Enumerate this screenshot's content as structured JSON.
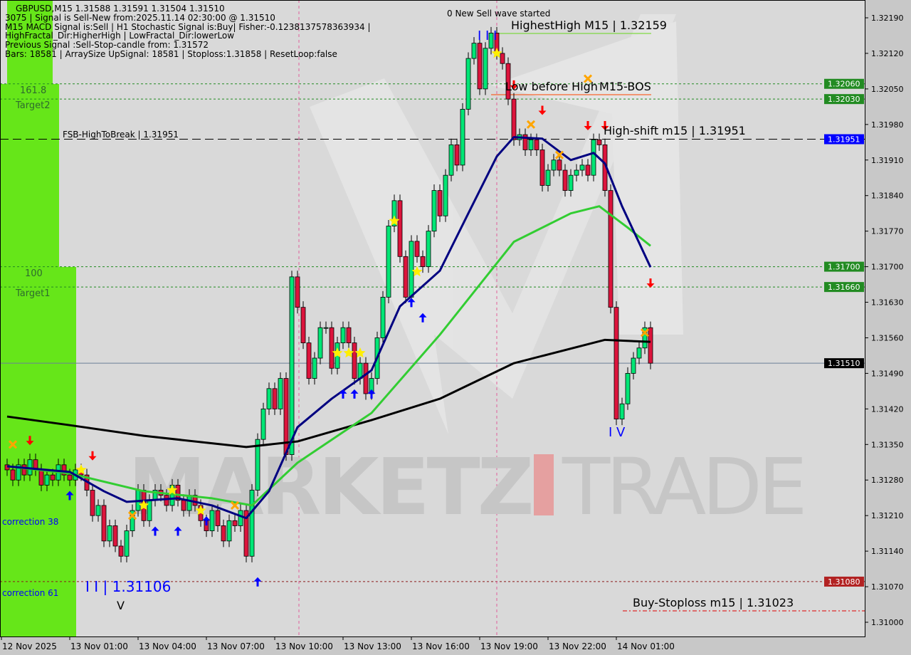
{
  "header": {
    "symbol_line": "GBPUSD,M15  1.31588 1.31591 1.31504 1.31510",
    "lines": [
      "3075 | Signal is Sell-New from:2025.11.14 02:30:00 @ 1.31510",
      "M15 MACD Signal is:Sell | H1 Stochastic Signal is:Buy| Fisher:-0.1238137578363934 | HighFractal_Dir:HigherHigh | LowFractal_Dir:lowerLow",
      "Previous Signal :Sell-Stop-candle from: 1.31572",
      "Bars: 18581 | ArraySize UpSignal: 18581 | Stoploss:1.31858 | ResetLoop:false"
    ]
  },
  "watermark": {
    "left": "MARKETZ",
    "right": "TRADE"
  },
  "colors": {
    "bull": "#00e676",
    "bear": "#dc143c",
    "ma_slow": "#000000",
    "ma_mid": "#32cd32",
    "ma_fast": "#000080",
    "zone": "#66e619",
    "level_green": "#228b22",
    "bid_tag": "#000000",
    "fsb_tag": "#0000ff",
    "stop_tag": "#b22222"
  },
  "zones": [
    {
      "label": "161.8",
      "sub": "Target2"
    },
    {
      "label": "100",
      "sub": "Target1"
    },
    {
      "label": "correction 38"
    },
    {
      "label": "correction 61"
    }
  ],
  "annotations": {
    "new_wave": "0 New Sell wave started",
    "highest_high": "HighestHigh    M15 | 1.32159",
    "low_before_high": "Low before High",
    "bos": "M15-BOS",
    "high_shift": "High-shift m15 | 1.31951",
    "fsb": "FSB-HighToBreak | 1.31951",
    "buy_stoploss": "Buy-Stoploss m15 | 1.31023",
    "wave3": "I I I",
    "wave4": "I V",
    "wave_low": "I I | 1.31106",
    "v_mark": "V"
  },
  "chart_data": {
    "type": "candlestick",
    "title": "GBPUSD,M15",
    "ylim": [
      1.3099,
      1.32225
    ],
    "y_ticks": [
      "1.32190",
      "1.32120",
      "1.32050",
      "1.31980",
      "1.31910",
      "1.31840",
      "1.31770",
      "1.31700",
      "1.31630",
      "1.31560",
      "1.31490",
      "1.31420",
      "1.31350",
      "1.31280",
      "1.31210",
      "1.31140",
      "1.31070",
      "1.31000"
    ],
    "x_ticks": [
      "12 Nov 2025",
      "13 Nov 01:00",
      "13 Nov 04:00",
      "13 Nov 07:00",
      "13 Nov 10:00",
      "13 Nov 13:00",
      "13 Nov 16:00",
      "13 Nov 19:00",
      "13 Nov 22:00",
      "14 Nov 01:00"
    ],
    "price_tags": [
      {
        "value": "1.32060",
        "kind": "green"
      },
      {
        "value": "1.32030",
        "kind": "green"
      },
      {
        "value": "1.31951",
        "kind": "fsb"
      },
      {
        "value": "1.31700",
        "kind": "green"
      },
      {
        "value": "1.31660",
        "kind": "green"
      },
      {
        "value": "1.31510",
        "kind": "bid"
      },
      {
        "value": "1.31080",
        "kind": "stop"
      }
    ],
    "close": [
      1.313,
      1.3128,
      1.3131,
      1.3129,
      1.3132,
      1.313,
      1.3127,
      1.3129,
      1.3128,
      1.3131,
      1.3129,
      1.3128,
      1.313,
      1.3129,
      1.3126,
      1.3121,
      1.3123,
      1.3116,
      1.3119,
      1.3115,
      1.3113,
      1.3118,
      1.3122,
      1.3126,
      1.312,
      1.3124,
      1.3126,
      1.3125,
      1.3123,
      1.3127,
      1.3124,
      1.3122,
      1.3125,
      1.3123,
      1.312,
      1.3118,
      1.3122,
      1.3119,
      1.3116,
      1.312,
      1.3119,
      1.3122,
      1.3113,
      1.3126,
      1.3136,
      1.3142,
      1.3146,
      1.3142,
      1.3148,
      1.3133,
      1.3168,
      1.3162,
      1.3155,
      1.3148,
      1.3152,
      1.3158,
      1.3158,
      1.315,
      1.3155,
      1.3158,
      1.3155,
      1.3148,
      1.3151,
      1.3145,
      1.3148,
      1.3156,
      1.3164,
      1.3178,
      1.3183,
      1.3172,
      1.3164,
      1.3175,
      1.3172,
      1.317,
      1.3177,
      1.3185,
      1.318,
      1.3188,
      1.3194,
      1.319,
      1.3201,
      1.3211,
      1.3214,
      1.3205,
      1.3213,
      1.3216,
      1.3212,
      1.321,
      1.3203,
      1.3195,
      1.3196,
      1.3193,
      1.3195,
      1.3193,
      1.3186,
      1.3189,
      1.3191,
      1.3189,
      1.3185,
      1.3188,
      1.3189,
      1.319,
      1.3188,
      1.3195,
      1.3194,
      1.3185,
      1.3162,
      1.314,
      1.3143,
      1.3149,
      1.3152,
      1.3154,
      1.3158,
      1.3151
    ],
    "series": [
      {
        "key": "ma_slow",
        "points": [
          [
            0,
            1.31405
          ],
          [
            11,
            1.31388
          ],
          [
            24,
            1.31367
          ],
          [
            42,
            1.31345
          ],
          [
            51,
            1.31356
          ],
          [
            64,
            1.31398
          ],
          [
            76,
            1.3144
          ],
          [
            89,
            1.3151
          ],
          [
            105,
            1.31556
          ],
          [
            113,
            1.31552
          ]
        ]
      },
      {
        "key": "ma_mid",
        "points": [
          [
            0,
            1.31307
          ],
          [
            11,
            1.31293
          ],
          [
            24,
            1.31258
          ],
          [
            36,
            1.31244
          ],
          [
            43,
            1.3123
          ],
          [
            51,
            1.31314
          ],
          [
            64,
            1.31412
          ],
          [
            76,
            1.31566
          ],
          [
            89,
            1.31749
          ],
          [
            99,
            1.31805
          ],
          [
            104,
            1.31819
          ],
          [
            109,
            1.31777
          ],
          [
            113,
            1.31741
          ]
        ]
      },
      {
        "key": "ma_fast",
        "points": [
          [
            0,
            1.31307
          ],
          [
            11,
            1.31296
          ],
          [
            17,
            1.31258
          ],
          [
            21,
            1.31237
          ],
          [
            30,
            1.31244
          ],
          [
            36,
            1.3123
          ],
          [
            42,
            1.31205
          ],
          [
            46,
            1.31258
          ],
          [
            51,
            1.31384
          ],
          [
            57,
            1.3144
          ],
          [
            64,
            1.31496
          ],
          [
            69,
            1.31622
          ],
          [
            76,
            1.31692
          ],
          [
            81,
            1.31805
          ],
          [
            86,
            1.31917
          ],
          [
            89,
            1.31955
          ],
          [
            94,
            1.31952
          ],
          [
            99,
            1.3191
          ],
          [
            103,
            1.31924
          ],
          [
            105,
            1.31903
          ],
          [
            108,
            1.31819
          ],
          [
            113,
            1.31699
          ]
        ]
      }
    ],
    "markers": [
      {
        "type": "sell-arrow",
        "bar": 15,
        "price": 1.3132
      },
      {
        "type": "sell-arrow",
        "bar": 4,
        "price": 1.3135
      },
      {
        "type": "sell-arrow",
        "bar": 89,
        "price": 1.3205
      },
      {
        "type": "sell-arrow",
        "bar": 94,
        "price": 1.32
      },
      {
        "type": "sell-arrow",
        "bar": 102,
        "price": 1.3197
      },
      {
        "type": "sell-arrow",
        "bar": 105,
        "price": 1.3197
      },
      {
        "type": "sell-arrow",
        "bar": 113,
        "price": 1.3166
      },
      {
        "type": "buy-arrow",
        "bar": 11,
        "price": 1.3126
      },
      {
        "type": "buy-arrow",
        "bar": 26,
        "price": 1.3119
      },
      {
        "type": "buy-arrow",
        "bar": 30,
        "price": 1.3119
      },
      {
        "type": "buy-arrow",
        "bar": 35,
        "price": 1.3121
      },
      {
        "type": "buy-arrow",
        "bar": 44,
        "price": 1.3109
      },
      {
        "type": "buy-arrow",
        "bar": 59,
        "price": 1.3146
      },
      {
        "type": "buy-arrow",
        "bar": 61,
        "price": 1.3146
      },
      {
        "type": "buy-arrow",
        "bar": 64,
        "price": 1.3146
      },
      {
        "type": "buy-arrow",
        "bar": 71,
        "price": 1.3164
      },
      {
        "type": "buy-arrow",
        "bar": 73,
        "price": 1.3161
      },
      {
        "type": "star",
        "bar": 13,
        "price": 1.313
      },
      {
        "type": "star",
        "bar": 24,
        "price": 1.3123
      },
      {
        "type": "star",
        "bar": 29,
        "price": 1.3126
      },
      {
        "type": "star",
        "bar": 34,
        "price": 1.3122
      },
      {
        "type": "star",
        "bar": 58,
        "price": 1.3153
      },
      {
        "type": "star",
        "bar": 60,
        "price": 1.3153
      },
      {
        "type": "star",
        "bar": 62,
        "price": 1.3153
      },
      {
        "type": "star",
        "bar": 68,
        "price": 1.3179
      },
      {
        "type": "star",
        "bar": 72,
        "price": 1.3169
      },
      {
        "type": "star",
        "bar": 86,
        "price": 1.3212
      },
      {
        "type": "cross",
        "bar": 1,
        "price": 1.3135
      },
      {
        "type": "cross",
        "bar": 22,
        "price": 1.3121
      },
      {
        "type": "cross",
        "bar": 40,
        "price": 1.3123
      },
      {
        "type": "cross",
        "bar": 92,
        "price": 1.3198
      },
      {
        "type": "cross",
        "bar": 97,
        "price": 1.3192
      },
      {
        "type": "cross",
        "bar": 102,
        "price": 1.3207
      },
      {
        "type": "cross",
        "bar": 112,
        "price": 1.3157
      }
    ]
  }
}
